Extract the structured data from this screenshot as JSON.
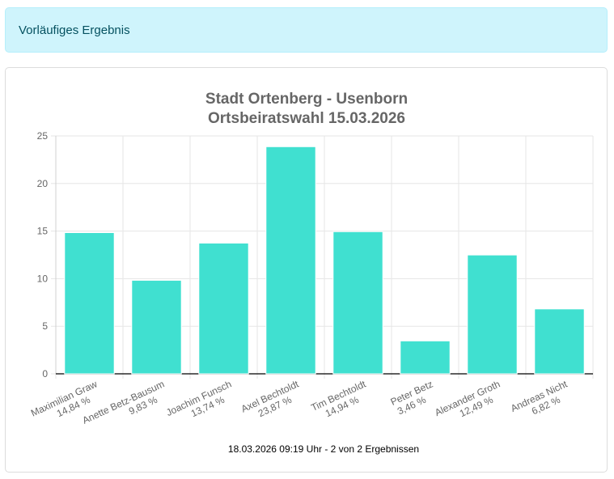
{
  "alert": {
    "text": "Vorläufiges Ergebnis"
  },
  "chart_data": {
    "type": "bar",
    "title": [
      "Stadt Ortenberg - Usenborn",
      "Ortsbeiratswahl 15.03.2026"
    ],
    "categories": [
      "Maximilian Graw",
      "Anette Betz-Bausum",
      "Joachim Funsch",
      "Axel Bechtoldt",
      "Tim Bechtoldt",
      "Peter Betz",
      "Alexander Groth",
      "Andreas Nicht"
    ],
    "values": [
      14.84,
      9.83,
      13.74,
      23.87,
      14.94,
      3.46,
      12.49,
      6.82
    ],
    "value_labels": [
      "14,84 %",
      "9,83 %",
      "13,74 %",
      "23,87 %",
      "14,94 %",
      "3,46 %",
      "12,49 %",
      "6,82 %"
    ],
    "ylim": [
      0,
      25
    ],
    "yticks": [
      0,
      5,
      10,
      15,
      20,
      25
    ],
    "grid": true,
    "legend": "none",
    "bar_color": "#40e0d0",
    "footer": "18.03.2026 09:19 Uhr - 2 von 2 Ergebnissen"
  }
}
